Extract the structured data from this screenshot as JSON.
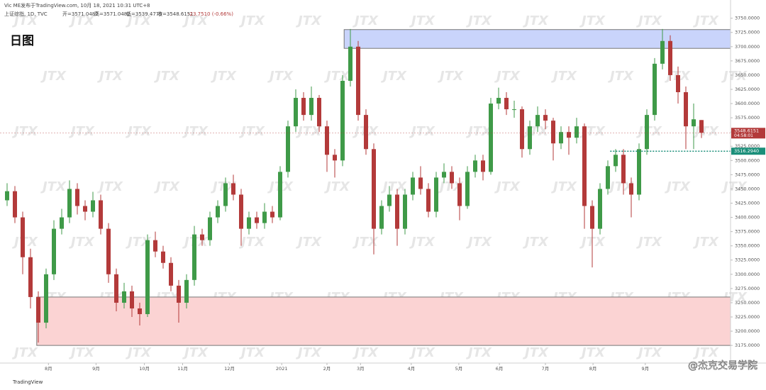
{
  "header": {
    "line1": "Vic ME发布于TradingView.com, 10月 18, 2021 10:31 UTC+8",
    "symbol": "上证综指, 1D, TVC",
    "open": "开=3571.0482",
    "high": "高=3571.0482",
    "low": "低=3539.4779",
    "close": "收=3548.6151",
    "change": "-23.7510 (-0.66%)"
  },
  "chart_data": {
    "type": "candlestick",
    "title": "日图",
    "ohlc": [
      [
        3430,
        3460,
        3420,
        3446
      ],
      [
        3446,
        3455,
        3390,
        3400
      ],
      [
        3400,
        3410,
        3300,
        3330
      ],
      [
        3330,
        3345,
        3240,
        3260
      ],
      [
        3260,
        3270,
        3180,
        3215
      ],
      [
        3215,
        3310,
        3205,
        3300
      ],
      [
        3300,
        3395,
        3290,
        3380
      ],
      [
        3380,
        3415,
        3370,
        3400
      ],
      [
        3400,
        3465,
        3390,
        3450
      ],
      [
        3450,
        3460,
        3405,
        3420
      ],
      [
        3420,
        3430,
        3395,
        3410
      ],
      [
        3410,
        3445,
        3400,
        3430
      ],
      [
        3430,
        3440,
        3370,
        3380
      ],
      [
        3380,
        3390,
        3285,
        3300
      ],
      [
        3300,
        3310,
        3235,
        3250
      ],
      [
        3250,
        3285,
        3240,
        3270
      ],
      [
        3270,
        3280,
        3225,
        3240
      ],
      [
        3240,
        3250,
        3210,
        3230
      ],
      [
        3230,
        3370,
        3225,
        3360
      ],
      [
        3360,
        3375,
        3330,
        3340
      ],
      [
        3340,
        3350,
        3310,
        3320
      ],
      [
        3320,
        3330,
        3270,
        3280
      ],
      [
        3280,
        3290,
        3215,
        3250
      ],
      [
        3250,
        3300,
        3240,
        3290
      ],
      [
        3290,
        3385,
        3280,
        3370
      ],
      [
        3370,
        3380,
        3350,
        3360
      ],
      [
        3360,
        3410,
        3350,
        3400
      ],
      [
        3400,
        3430,
        3390,
        3420
      ],
      [
        3420,
        3470,
        3410,
        3460
      ],
      [
        3460,
        3475,
        3430,
        3440
      ],
      [
        3440,
        3450,
        3350,
        3380
      ],
      [
        3380,
        3410,
        3370,
        3400
      ],
      [
        3400,
        3410,
        3380,
        3390
      ],
      [
        3390,
        3425,
        3380,
        3410
      ],
      [
        3410,
        3420,
        3390,
        3400
      ],
      [
        3400,
        3490,
        3395,
        3480
      ],
      [
        3480,
        3570,
        3470,
        3560
      ],
      [
        3560,
        3625,
        3550,
        3610
      ],
      [
        3610,
        3620,
        3570,
        3580
      ],
      [
        3580,
        3630,
        3570,
        3610
      ],
      [
        3610,
        3615,
        3550,
        3560
      ],
      [
        3560,
        3570,
        3480,
        3510
      ],
      [
        3510,
        3520,
        3470,
        3500
      ],
      [
        3500,
        3650,
        3490,
        3640
      ],
      [
        3640,
        3731,
        3630,
        3700
      ],
      [
        3700,
        3710,
        3570,
        3580
      ],
      [
        3580,
        3590,
        3510,
        3520
      ],
      [
        3520,
        3530,
        3335,
        3380
      ],
      [
        3380,
        3430,
        3370,
        3420
      ],
      [
        3420,
        3455,
        3410,
        3440
      ],
      [
        3440,
        3450,
        3350,
        3380
      ],
      [
        3380,
        3450,
        3370,
        3440
      ],
      [
        3440,
        3480,
        3430,
        3470
      ],
      [
        3470,
        3490,
        3440,
        3450
      ],
      [
        3450,
        3460,
        3400,
        3410
      ],
      [
        3410,
        3480,
        3400,
        3470
      ],
      [
        3470,
        3495,
        3460,
        3480
      ],
      [
        3480,
        3490,
        3450,
        3460
      ],
      [
        3460,
        3470,
        3395,
        3420
      ],
      [
        3420,
        3490,
        3415,
        3480
      ],
      [
        3480,
        3510,
        3470,
        3500
      ],
      [
        3500,
        3510,
        3465,
        3480
      ],
      [
        3480,
        3610,
        3475,
        3600
      ],
      [
        3600,
        3628,
        3590,
        3610
      ],
      [
        3610,
        3620,
        3580,
        3590
      ],
      [
        3590,
        3605,
        3575,
        3590
      ],
      [
        3590,
        3595,
        3505,
        3520
      ],
      [
        3520,
        3570,
        3510,
        3560
      ],
      [
        3560,
        3595,
        3550,
        3580
      ],
      [
        3580,
        3590,
        3555,
        3570
      ],
      [
        3570,
        3575,
        3500,
        3530
      ],
      [
        3530,
        3560,
        3520,
        3550
      ],
      [
        3550,
        3560,
        3510,
        3540
      ],
      [
        3540,
        3575,
        3530,
        3560
      ],
      [
        3560,
        3565,
        3380,
        3420
      ],
      [
        3420,
        3430,
        3312,
        3380
      ],
      [
        3380,
        3460,
        3370,
        3450
      ],
      [
        3450,
        3500,
        3440,
        3490
      ],
      [
        3490,
        3520,
        3480,
        3510
      ],
      [
        3510,
        3520,
        3440,
        3460
      ],
      [
        3460,
        3470,
        3400,
        3440
      ],
      [
        3440,
        3530,
        3430,
        3520
      ],
      [
        3520,
        3590,
        3510,
        3580
      ],
      [
        3580,
        3680,
        3570,
        3670
      ],
      [
        3670,
        3731,
        3660,
        3710
      ],
      [
        3710,
        3720,
        3640,
        3650
      ],
      [
        3650,
        3665,
        3600,
        3620
      ],
      [
        3620,
        3630,
        3520,
        3560
      ],
      [
        3560,
        3600,
        3520,
        3572.3661
      ],
      [
        3571.0482,
        3571.0482,
        3539.4779,
        3548.6151
      ]
    ],
    "up_color": "#3f9a48",
    "down_color": "#b33a3a",
    "ylim": [
      3144,
      3782
    ],
    "yticks": [
      {
        "value": 3175,
        "label": "3175.0000"
      },
      {
        "value": 3200,
        "label": "3200.0000"
      },
      {
        "value": 3225,
        "label": "3225.0000"
      },
      {
        "value": 3250,
        "label": "3250.0000"
      },
      {
        "value": 3275,
        "label": "3275.0000"
      },
      {
        "value": 3300,
        "label": "3300.0000"
      },
      {
        "value": 3325,
        "label": "3325.0000"
      },
      {
        "value": 3350,
        "label": "3350.0000"
      },
      {
        "value": 3375,
        "label": "3375.0000"
      },
      {
        "value": 3400,
        "label": "3400.0000"
      },
      {
        "value": 3425,
        "label": "3425.0000"
      },
      {
        "value": 3450,
        "label": "3450.0000"
      },
      {
        "value": 3475,
        "label": "3475.0000"
      },
      {
        "value": 3500,
        "label": "3500.0000"
      },
      {
        "value": 3525,
        "label": "3525.0000"
      },
      {
        "value": 3550,
        "label": "3550.0000"
      },
      {
        "value": 3575,
        "label": "3575.0000"
      },
      {
        "value": 3600,
        "label": "3600.0000"
      },
      {
        "value": 3625,
        "label": "3625.0000"
      },
      {
        "value": 3650,
        "label": "3650.0000"
      },
      {
        "value": 3675,
        "label": "3675.0000"
      },
      {
        "value": 3700,
        "label": "3700.0000"
      },
      {
        "value": 3725,
        "label": "3725.0000"
      },
      {
        "value": 3750,
        "label": "3750.0000"
      }
    ],
    "xticks": [
      {
        "value": 5.3,
        "label": "8月"
      },
      {
        "value": 11.4,
        "label": "9月"
      },
      {
        "value": 17.6,
        "label": "10月"
      },
      {
        "value": 22.5,
        "label": "11月"
      },
      {
        "value": 28.5,
        "label": "12月"
      },
      {
        "value": 35.2,
        "label": "2021"
      },
      {
        "value": 41,
        "label": "2月"
      },
      {
        "value": 45.3,
        "label": "3月"
      },
      {
        "value": 51.8,
        "label": "4月"
      },
      {
        "value": 57.9,
        "label": "5月"
      },
      {
        "value": 63.1,
        "label": "6月"
      },
      {
        "value": 69,
        "label": "7月"
      },
      {
        "value": 75.1,
        "label": "8月"
      },
      {
        "value": 81.8,
        "label": "9月"
      }
    ],
    "zones": [
      {
        "from": 3697,
        "to": 3730,
        "start": 43.2,
        "color": "#c9d4fb"
      },
      {
        "from": 3175,
        "to": 3260,
        "start": 3.8,
        "color": "#fbd3d3"
      }
    ],
    "support": {
      "value": 3516.294,
      "label": "3516.2940",
      "start": 77.3,
      "color": "#1b8f7a"
    },
    "countdown": "04:58:01",
    "watermark": "JTX",
    "credit": "@杰克交易学院",
    "logo": "TradingView"
  }
}
